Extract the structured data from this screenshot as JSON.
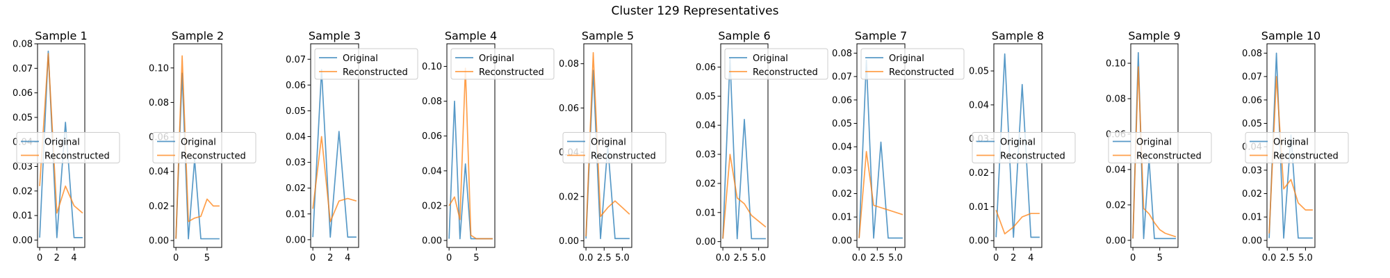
{
  "figure": {
    "title": "Cluster 129 Representatives"
  },
  "colors": {
    "original": "#1f77b4",
    "reconstructed": "#ff7f0e"
  },
  "legend_labels": [
    "Original",
    "Reconstructed"
  ],
  "chart_data": [
    {
      "type": "line",
      "title": "Sample 1",
      "legend_loc": "center-left",
      "xlim": [
        -0.25,
        5.25
      ],
      "ylim": [
        -0.003,
        0.08
      ],
      "xticks": [
        0,
        2,
        4
      ],
      "xtick_labels": [
        "0",
        "2",
        "4"
      ],
      "yticks": [
        0,
        0.01,
        0.02,
        0.03,
        0.04,
        0.05,
        0.06,
        0.07,
        0.08
      ],
      "ytick_labels": [
        "0.00",
        "0.01",
        "0.02",
        "0.03",
        "0.04",
        "0.05",
        "0.06",
        "0.07",
        "0.08"
      ],
      "x": [
        0,
        1,
        2,
        3,
        4,
        5
      ],
      "series": [
        {
          "name": "Original",
          "values": [
            0.001,
            0.077,
            0.001,
            0.048,
            0.001,
            0.001
          ]
        },
        {
          "name": "Reconstructed",
          "values": [
            0.022,
            0.076,
            0.011,
            0.022,
            0.014,
            0.011
          ]
        }
      ]
    },
    {
      "type": "line",
      "title": "Sample 2",
      "legend_loc": "center-left",
      "xlim": [
        -0.35,
        7.35
      ],
      "ylim": [
        -0.004,
        0.114
      ],
      "xticks": [
        0,
        5
      ],
      "xtick_labels": [
        "0",
        "5"
      ],
      "yticks": [
        0,
        0.02,
        0.04,
        0.06,
        0.08,
        0.1
      ],
      "ytick_labels": [
        "0.00",
        "0.02",
        "0.04",
        "0.06",
        "0.08",
        "0.10"
      ],
      "x": [
        0,
        1,
        2,
        3,
        4,
        5,
        6,
        7
      ],
      "series": [
        {
          "name": "Original",
          "values": [
            0.001,
            0.097,
            0.001,
            0.047,
            0.001,
            0.001,
            0.001,
            0.001
          ]
        },
        {
          "name": "Reconstructed",
          "values": [
            0.001,
            0.107,
            0.011,
            0.013,
            0.014,
            0.024,
            0.02,
            0.02
          ]
        }
      ]
    },
    {
      "type": "line",
      "title": "Sample 3",
      "legend_loc": "upper-left",
      "xlim": [
        -0.25,
        5.25
      ],
      "ylim": [
        -0.003,
        0.076
      ],
      "xticks": [
        0,
        2,
        4
      ],
      "xtick_labels": [
        "0",
        "2",
        "4"
      ],
      "yticks": [
        0,
        0.01,
        0.02,
        0.03,
        0.04,
        0.05,
        0.06,
        0.07
      ],
      "ytick_labels": [
        "0.00",
        "0.01",
        "0.02",
        "0.03",
        "0.04",
        "0.05",
        "0.06",
        "0.07"
      ],
      "x": [
        0,
        1,
        2,
        3,
        4,
        5
      ],
      "series": [
        {
          "name": "Original",
          "values": [
            0.001,
            0.066,
            0.001,
            0.042,
            0.001,
            0.001
          ]
        },
        {
          "name": "Reconstructed",
          "values": [
            0.012,
            0.04,
            0.007,
            0.015,
            0.016,
            0.015
          ]
        }
      ]
    },
    {
      "type": "line",
      "title": "Sample 4",
      "legend_loc": "upper-left",
      "xlim": [
        -0.4,
        8.4
      ],
      "ylim": [
        -0.004,
        0.113
      ],
      "xticks": [
        0,
        5
      ],
      "xtick_labels": [
        "0",
        "5"
      ],
      "yticks": [
        0,
        0.02,
        0.04,
        0.06,
        0.08,
        0.1
      ],
      "ytick_labels": [
        "0.00",
        "0.02",
        "0.04",
        "0.06",
        "0.08",
        "0.10"
      ],
      "x": [
        0,
        1,
        2,
        3,
        4,
        5,
        6,
        7,
        8
      ],
      "series": [
        {
          "name": "Original",
          "values": [
            0.001,
            0.08,
            0.001,
            0.044,
            0.001,
            0.001,
            0.001,
            0.001,
            0.001
          ]
        },
        {
          "name": "Reconstructed",
          "values": [
            0.02,
            0.025,
            0.012,
            0.099,
            0.003,
            0.001,
            0.001,
            0.001,
            0.001
          ]
        }
      ]
    },
    {
      "type": "line",
      "title": "Sample 5",
      "legend_loc": "center-left",
      "xlim": [
        -0.3,
        6.3
      ],
      "ylim": [
        -0.003,
        0.089
      ],
      "xticks": [
        0,
        2.5,
        5
      ],
      "xtick_labels": [
        "0.0",
        "2.5",
        "5.0"
      ],
      "yticks": [
        0,
        0.02,
        0.04,
        0.06,
        0.08
      ],
      "ytick_labels": [
        "0.00",
        "0.02",
        "0.04",
        "0.06",
        "0.08"
      ],
      "x": [
        0,
        1,
        2,
        3,
        4,
        5,
        6
      ],
      "series": [
        {
          "name": "Original",
          "values": [
            0.001,
            0.077,
            0.001,
            0.043,
            0.001,
            0.001,
            0.001
          ]
        },
        {
          "name": "Reconstructed",
          "values": [
            0.002,
            0.085,
            0.011,
            0.015,
            0.018,
            0.015,
            0.012
          ]
        }
      ]
    },
    {
      "type": "line",
      "title": "Sample 6",
      "legend_loc": "upper-left",
      "xlim": [
        -0.3,
        6.3
      ],
      "ylim": [
        -0.002,
        0.068
      ],
      "xticks": [
        0,
        2.5,
        5
      ],
      "xtick_labels": [
        "0.0",
        "2.5",
        "5.0"
      ],
      "yticks": [
        0,
        0.01,
        0.02,
        0.03,
        0.04,
        0.05,
        0.06
      ],
      "ytick_labels": [
        "0.00",
        "0.01",
        "0.02",
        "0.03",
        "0.04",
        "0.05",
        "0.06"
      ],
      "x": [
        0,
        1,
        2,
        3,
        4,
        5,
        6
      ],
      "series": [
        {
          "name": "Original",
          "values": [
            0.001,
            0.063,
            0.001,
            0.042,
            0.001,
            0.001,
            0.001
          ]
        },
        {
          "name": "Reconstructed",
          "values": [
            0.001,
            0.03,
            0.015,
            0.013,
            0.009,
            0.007,
            0.005
          ]
        }
      ]
    },
    {
      "type": "line",
      "title": "Sample 7",
      "legend_loc": "upper-left",
      "xlim": [
        -0.3,
        6.3
      ],
      "ylim": [
        -0.003,
        0.084
      ],
      "xticks": [
        0,
        2.5,
        5
      ],
      "xtick_labels": [
        "0.0",
        "2.5",
        "5.0"
      ],
      "yticks": [
        0,
        0.01,
        0.02,
        0.03,
        0.04,
        0.05,
        0.06,
        0.07,
        0.08
      ],
      "ytick_labels": [
        "0.00",
        "0.01",
        "0.02",
        "0.03",
        "0.04",
        "0.05",
        "0.06",
        "0.07",
        "0.08"
      ],
      "x": [
        0,
        1,
        2,
        3,
        4,
        5,
        6
      ],
      "series": [
        {
          "name": "Original",
          "values": [
            0.001,
            0.077,
            0.001,
            0.042,
            0.001,
            0.001,
            0.001
          ]
        },
        {
          "name": "Reconstructed",
          "values": [
            0.001,
            0.038,
            0.015,
            0.014,
            0.013,
            0.012,
            0.011
          ]
        }
      ]
    },
    {
      "type": "line",
      "title": "Sample 8",
      "legend_loc": "center-right",
      "xlim": [
        -0.25,
        5.25
      ],
      "ylim": [
        -0.002,
        0.058
      ],
      "xticks": [
        0,
        2,
        4
      ],
      "xtick_labels": [
        "0",
        "2",
        "4"
      ],
      "yticks": [
        0,
        0.01,
        0.02,
        0.03,
        0.04,
        0.05
      ],
      "ytick_labels": [
        "0.00",
        "0.01",
        "0.02",
        "0.03",
        "0.04",
        "0.05"
      ],
      "x": [
        0,
        1,
        2,
        3,
        4,
        5
      ],
      "series": [
        {
          "name": "Original",
          "values": [
            0.001,
            0.055,
            0.001,
            0.046,
            0.001,
            0.001
          ]
        },
        {
          "name": "Reconstructed",
          "values": [
            0.009,
            0.002,
            0.004,
            0.007,
            0.008,
            0.008
          ]
        }
      ]
    },
    {
      "type": "line",
      "title": "Sample 9",
      "legend_loc": "center-right",
      "xlim": [
        -0.4,
        8.4
      ],
      "ylim": [
        -0.004,
        0.111
      ],
      "xticks": [
        0,
        5
      ],
      "xtick_labels": [
        "0",
        "5"
      ],
      "yticks": [
        0,
        0.02,
        0.04,
        0.06,
        0.08,
        0.1
      ],
      "ytick_labels": [
        "0.00",
        "0.02",
        "0.04",
        "0.06",
        "0.08",
        "0.10"
      ],
      "x": [
        0,
        1,
        2,
        3,
        4,
        5,
        6,
        7,
        8
      ],
      "series": [
        {
          "name": "Original",
          "values": [
            0.001,
            0.106,
            0.001,
            0.046,
            0.001,
            0.001,
            0.001,
            0.001,
            0.001
          ]
        },
        {
          "name": "Reconstructed",
          "values": [
            0.001,
            0.098,
            0.018,
            0.015,
            0.01,
            0.006,
            0.004,
            0.003,
            0.002
          ]
        }
      ]
    },
    {
      "type": "line",
      "title": "Sample 10",
      "legend_loc": "center-right",
      "xlim": [
        -0.3,
        6.3
      ],
      "ylim": [
        -0.003,
        0.084
      ],
      "xticks": [
        0,
        2.5,
        5
      ],
      "xtick_labels": [
        "0.0",
        "2.5",
        "5.0"
      ],
      "yticks": [
        0,
        0.01,
        0.02,
        0.03,
        0.04,
        0.05,
        0.06,
        0.07,
        0.08
      ],
      "ytick_labels": [
        "0.00",
        "0.01",
        "0.02",
        "0.03",
        "0.04",
        "0.05",
        "0.06",
        "0.07",
        "0.08"
      ],
      "x": [
        0,
        1,
        2,
        3,
        4,
        5,
        6
      ],
      "series": [
        {
          "name": "Original",
          "values": [
            0.001,
            0.08,
            0.001,
            0.045,
            0.001,
            0.001,
            0.001
          ]
        },
        {
          "name": "Reconstructed",
          "values": [
            0.003,
            0.07,
            0.022,
            0.026,
            0.016,
            0.013,
            0.013
          ]
        }
      ]
    }
  ]
}
